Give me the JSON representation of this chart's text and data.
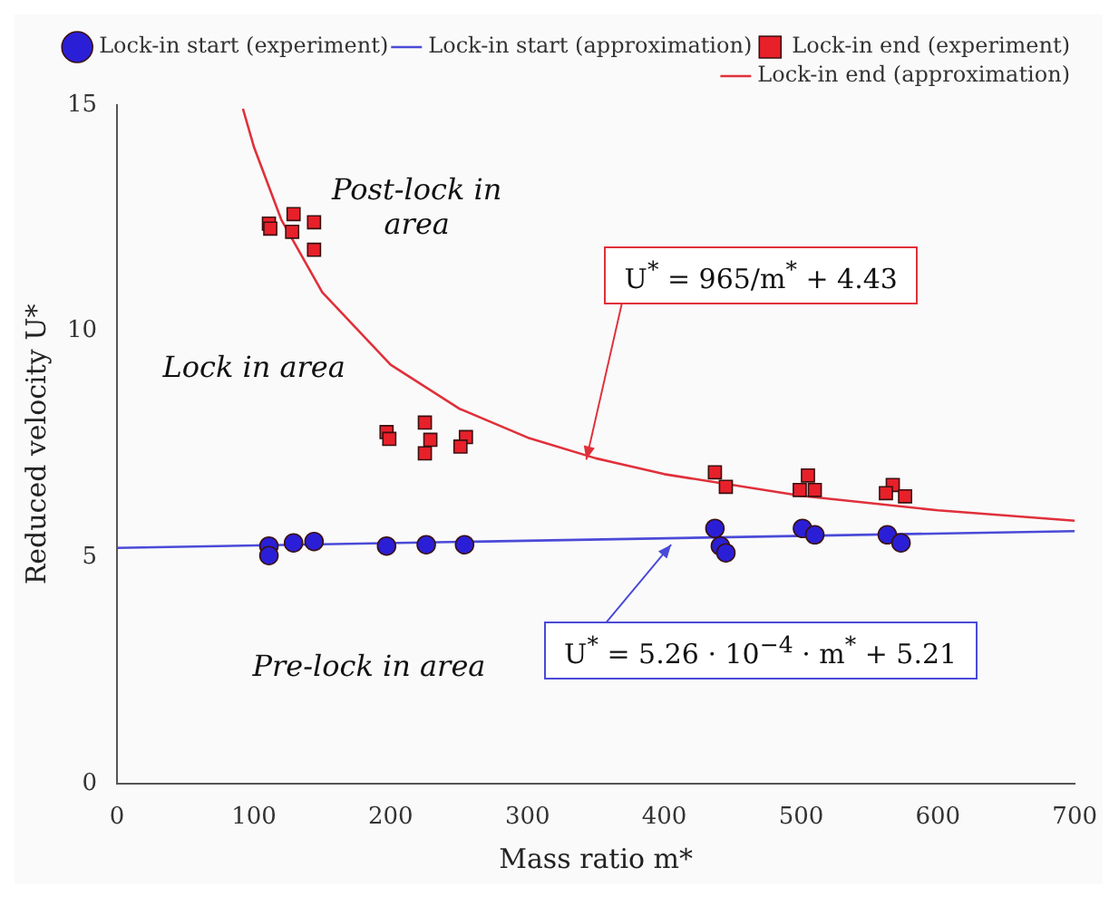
{
  "chart_data": {
    "type": "scatter",
    "xlabel": "Mass ratio m*",
    "ylabel": "Reduced velocity U*",
    "xlim": [
      0,
      700
    ],
    "xticks": [
      0,
      100,
      200,
      300,
      400,
      500,
      600,
      700
    ],
    "ylim": [
      0,
      15
    ],
    "yticks": [
      0,
      5,
      10,
      15
    ],
    "grid": false,
    "legend": "top right",
    "series": [
      {
        "name": "Lock-in start (experiment)",
        "marker": "circle",
        "color": "#2a1fd6",
        "x": [
          111,
          111,
          129,
          144,
          197,
          226,
          254,
          437,
          441,
          445,
          501,
          510,
          563,
          573
        ],
        "values": [
          5.25,
          5.04,
          5.32,
          5.35,
          5.25,
          5.28,
          5.28,
          5.64,
          5.25,
          5.1,
          5.64,
          5.5,
          5.5,
          5.32
        ]
      },
      {
        "name": "Lock-in start (approximation)",
        "type": "line",
        "marker": "none",
        "color": "#4a4ad8",
        "x": [
          0,
          700
        ],
        "values": [
          5.21,
          5.58
        ]
      },
      {
        "name": "Lock-in end (experiment)",
        "marker": "square",
        "color": "#e8202a",
        "x": [
          111,
          112,
          129,
          128,
          144,
          144,
          197,
          199,
          225,
          229,
          225,
          255,
          251,
          437,
          445,
          505,
          499,
          510,
          567,
          562,
          576
        ],
        "values": [
          12.38,
          12.27,
          12.59,
          12.2,
          12.41,
          11.8,
          7.77,
          7.62,
          7.98,
          7.6,
          7.3,
          7.66,
          7.45,
          6.88,
          6.56,
          6.81,
          6.49,
          6.49,
          6.6,
          6.42,
          6.35
        ]
      },
      {
        "name": "Lock-in end (approximation)",
        "type": "line",
        "marker": "none",
        "color": "#e0303a",
        "x": [
          92,
          100,
          120,
          150,
          200,
          250,
          300,
          350,
          400,
          500,
          600,
          700
        ],
        "values": [
          14.92,
          14.08,
          12.47,
          10.86,
          9.26,
          8.29,
          7.65,
          7.19,
          6.84,
          6.36,
          6.04,
          5.81
        ]
      }
    ],
    "annotations": [
      {
        "text": "U$^{*}$ = 965/m$^{*}$ + 4.43",
        "x": 343,
        "y": 7.16
      },
      {
        "text": "U$^{*}$ = 5.26 · 10$^{−4}$ · m$^{*}$ + 5.21",
        "x": 405,
        "y": 5.28
      },
      "Post-lock in area",
      "Lock in area",
      "Pre-lock in area"
    ]
  }
}
